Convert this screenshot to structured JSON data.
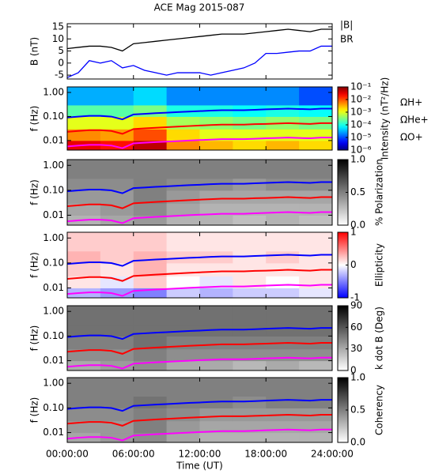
{
  "chart_data": [
    {
      "type": "line",
      "title": "ACE Mag 2015-087",
      "ylabel": "B (nT)",
      "xlim": [
        0,
        24
      ],
      "ylim": [
        -6.6,
        16.3
      ],
      "yticks": [
        -5,
        0,
        5,
        10,
        15
      ],
      "x": [
        0,
        1,
        2,
        3,
        4,
        5,
        6,
        7,
        8,
        9,
        10,
        11,
        12,
        13,
        14,
        15,
        16,
        17,
        18,
        19,
        20,
        21,
        22,
        23,
        24
      ],
      "series": [
        {
          "name": "|B|",
          "color": "#000000",
          "values": [
            6,
            6.5,
            7,
            7,
            6.5,
            5,
            8,
            8.5,
            9,
            9.5,
            10,
            10.5,
            11,
            11.5,
            12,
            12,
            12,
            12.5,
            13,
            13.5,
            14,
            13.5,
            13,
            14,
            14
          ]
        },
        {
          "name": "BR",
          "color": "#0000ff",
          "values": [
            -6,
            -4,
            1,
            0,
            1,
            -2,
            -1,
            -3,
            -4,
            -5,
            -4,
            -4,
            -4,
            -5,
            -4,
            -3,
            -2,
            0,
            4,
            4,
            4.5,
            5,
            5,
            7,
            7
          ]
        }
      ]
    },
    {
      "type": "heatmap",
      "ylabel": "f (Hz)",
      "xlim": [
        0,
        24
      ],
      "ylim": [
        0.004,
        1.7
      ],
      "log_y": true,
      "yticks": [
        0.01,
        {
          "value": 0.1,
          "label": "0.10"
        },
        {
          "value": 1,
          "label": "1.00"
        }
      ],
      "x_bins": [
        0,
        3,
        6,
        9,
        12,
        15,
        18,
        21,
        24
      ],
      "y_bins": [
        0.004,
        0.01,
        0.03,
        0.1,
        0.3,
        1.7
      ],
      "colormap": "jet",
      "log_z": true,
      "zlim": [
        1e-06,
        0.1
      ],
      "zlabel": "Intensity (nT²/Hz)",
      "zticks": [
        {
          "value": 0.1,
          "label": "10⁻¹"
        },
        {
          "value": 0.01,
          "label": "10⁻²"
        },
        {
          "value": 0.001,
          "label": "10⁻³"
        },
        {
          "value": 0.0001,
          "label": "10⁻⁴"
        },
        {
          "value": 1e-05,
          "label": "10⁻⁵"
        },
        {
          "value": 1e-06,
          "label": "10⁻⁶"
        }
      ],
      "z": [
        [
          0.03,
          0.02,
          0.05,
          0.005,
          0.003,
          0.002,
          0.003,
          0.002
        ],
        [
          0.005,
          0.004,
          0.01,
          0.002,
          0.001,
          0.001,
          0.001,
          0.001
        ],
        [
          0.001,
          0.001,
          0.002,
          0.0005,
          0.0004,
          0.0003,
          0.0004,
          0.0003
        ],
        [
          0.0002,
          0.0002,
          0.0003,
          0.0001,
          0.0001,
          8e-05,
          0.0001,
          8e-05
        ],
        [
          3e-05,
          3e-05,
          5e-05,
          2e-05,
          2e-05,
          2e-05,
          2e-05,
          1e-05
        ]
      ],
      "overlay_x": [
        0,
        1,
        2,
        3,
        4,
        5,
        6,
        7,
        8,
        9,
        10,
        11,
        12,
        13,
        14,
        15,
        16,
        17,
        18,
        19,
        20,
        21,
        22,
        23,
        24
      ],
      "overlay": [
        {
          "name": "ΩH+",
          "color": "#0000ff",
          "values": [
            0.091,
            0.099,
            0.106,
            0.106,
            0.099,
            0.076,
            0.122,
            0.129,
            0.137,
            0.144,
            0.152,
            0.16,
            0.167,
            0.175,
            0.182,
            0.182,
            0.182,
            0.19,
            0.198,
            0.205,
            0.213,
            0.205,
            0.198,
            0.213,
            0.213
          ]
        },
        {
          "name": "ΩHe+",
          "color": "#ff0000",
          "values": [
            0.023,
            0.025,
            0.027,
            0.027,
            0.025,
            0.019,
            0.03,
            0.032,
            0.034,
            0.036,
            0.038,
            0.04,
            0.042,
            0.044,
            0.046,
            0.046,
            0.046,
            0.048,
            0.049,
            0.051,
            0.053,
            0.051,
            0.049,
            0.053,
            0.053
          ]
        },
        {
          "name": "ΩO+",
          "color": "#ff00ff",
          "values": [
            0.0057,
            0.0062,
            0.0066,
            0.0066,
            0.0062,
            0.0048,
            0.0076,
            0.0081,
            0.0086,
            0.009,
            0.0095,
            0.01,
            0.0105,
            0.0109,
            0.0114,
            0.0114,
            0.0114,
            0.0119,
            0.0124,
            0.0128,
            0.0133,
            0.0128,
            0.0124,
            0.0133,
            0.0133
          ]
        }
      ]
    },
    {
      "type": "heatmap",
      "ylabel": "f (Hz)",
      "xlim": [
        0,
        24
      ],
      "ylim": [
        0.004,
        1.7
      ],
      "log_y": true,
      "yticks": [
        0.01,
        {
          "value": 0.1,
          "label": "0.10"
        },
        {
          "value": 1,
          "label": "1.00"
        }
      ],
      "x_bins": [
        0,
        3,
        6,
        9,
        12,
        15,
        18,
        21,
        24
      ],
      "y_bins": [
        0.004,
        0.01,
        0.03,
        0.1,
        0.3,
        1.7
      ],
      "colormap": "gray_r",
      "zlim": [
        0,
        1
      ],
      "zlabel": "% Polarization",
      "zticks": [
        {
          "value": 0,
          "label": "0.0"
        },
        {
          "value": 0.5,
          "label": "0.5"
        },
        {
          "value": 1,
          "label": "1.0"
        }
      ],
      "z": [
        [
          0.3,
          0.35,
          0.4,
          0.3,
          0.3,
          0.25,
          0.3,
          0.25
        ],
        [
          0.35,
          0.4,
          0.45,
          0.35,
          0.3,
          0.3,
          0.3,
          0.3
        ],
        [
          0.4,
          0.4,
          0.5,
          0.4,
          0.35,
          0.35,
          0.35,
          0.35
        ],
        [
          0.45,
          0.45,
          0.5,
          0.45,
          0.45,
          0.4,
          0.45,
          0.45
        ],
        [
          0.5,
          0.5,
          0.5,
          0.5,
          0.5,
          0.5,
          0.5,
          0.5
        ]
      ]
    },
    {
      "type": "heatmap",
      "ylabel": "f (Hz)",
      "xlim": [
        0,
        24
      ],
      "ylim": [
        0.004,
        1.7
      ],
      "log_y": true,
      "yticks": [
        0.01,
        {
          "value": 0.1,
          "label": "0.10"
        },
        {
          "value": 1,
          "label": "1.00"
        }
      ],
      "x_bins": [
        0,
        3,
        6,
        9,
        12,
        15,
        18,
        21,
        24
      ],
      "y_bins": [
        0.004,
        0.01,
        0.03,
        0.1,
        0.3,
        1.7
      ],
      "colormap": "bwr",
      "zlim": [
        -1,
        1
      ],
      "zlabel": "Ellipticity",
      "zticks": [
        -1,
        0,
        1
      ],
      "z": [
        [
          -0.3,
          -0.4,
          -0.5,
          -0.2,
          -0.3,
          -0.2,
          -0.2,
          -0.1
        ],
        [
          0.1,
          -0.1,
          0.2,
          0,
          -0.1,
          0.1,
          0,
          0.1
        ],
        [
          0.2,
          0.1,
          0.3,
          0.1,
          0.1,
          0.1,
          0.1,
          0.1
        ],
        [
          0.3,
          0.2,
          0.3,
          0.2,
          0.2,
          0.1,
          0.2,
          0.1
        ],
        [
          0.2,
          0.2,
          0.2,
          0.1,
          0.1,
          0.1,
          0.1,
          0.1
        ]
      ]
    },
    {
      "type": "heatmap",
      "ylabel": "f (Hz)",
      "xlim": [
        0,
        24
      ],
      "ylim": [
        0.004,
        1.7
      ],
      "log_y": true,
      "yticks": [
        0.01,
        {
          "value": 0.1,
          "label": "0.10"
        },
        {
          "value": 1,
          "label": "1.00"
        }
      ],
      "x_bins": [
        0,
        3,
        6,
        9,
        12,
        15,
        18,
        21,
        24
      ],
      "y_bins": [
        0.004,
        0.01,
        0.03,
        0.1,
        0.3,
        1.7
      ],
      "colormap": "gray_r",
      "zlim": [
        0,
        90
      ],
      "zlabel": "k dot B (Deg)",
      "zticks": [
        0,
        30,
        60,
        90
      ],
      "z": [
        [
          30,
          35,
          40,
          30,
          30,
          25,
          30,
          25
        ],
        [
          40,
          40,
          45,
          40,
          40,
          40,
          40,
          40
        ],
        [
          45,
          45,
          50,
          45,
          45,
          45,
          45,
          45
        ],
        [
          50,
          50,
          50,
          50,
          50,
          50,
          50,
          50
        ],
        [
          50,
          50,
          50,
          50,
          50,
          50,
          50,
          50
        ]
      ]
    },
    {
      "type": "heatmap",
      "ylabel": "f (Hz)",
      "xlim": [
        0,
        24
      ],
      "ylim": [
        0.004,
        1.7
      ],
      "log_y": true,
      "yticks": [
        0.01,
        {
          "value": 0.1,
          "label": "0.10"
        },
        {
          "value": 1,
          "label": "1.00"
        }
      ],
      "x_bins": [
        0,
        3,
        6,
        9,
        12,
        15,
        18,
        21,
        24
      ],
      "y_bins": [
        0.004,
        0.01,
        0.03,
        0.1,
        0.3,
        1.7
      ],
      "colormap": "gray_r",
      "zlim": [
        0,
        1
      ],
      "zlabel": "Coherency",
      "zticks": [
        {
          "value": 0,
          "label": "0.0"
        },
        {
          "value": 0.5,
          "label": "0.5"
        },
        {
          "value": 1,
          "label": "1.0"
        }
      ],
      "z": [
        [
          0.35,
          0.4,
          0.45,
          0.35,
          0.3,
          0.3,
          0.3,
          0.3
        ],
        [
          0.4,
          0.4,
          0.5,
          0.4,
          0.35,
          0.35,
          0.35,
          0.35
        ],
        [
          0.45,
          0.45,
          0.5,
          0.45,
          0.4,
          0.4,
          0.4,
          0.4
        ],
        [
          0.5,
          0.5,
          0.55,
          0.5,
          0.5,
          0.45,
          0.5,
          0.5
        ],
        [
          0.5,
          0.5,
          0.5,
          0.5,
          0.5,
          0.5,
          0.5,
          0.5
        ]
      ],
      "xlabel": "Time (UT)",
      "xticks": [
        {
          "value": 0,
          "label": "00:00:00"
        },
        {
          "value": 6,
          "label": "06:00:00"
        },
        {
          "value": 12,
          "label": "12:00:00"
        },
        {
          "value": 18,
          "label": "18:00:00"
        },
        {
          "value": 24,
          "label": "24:00:00"
        }
      ]
    }
  ]
}
